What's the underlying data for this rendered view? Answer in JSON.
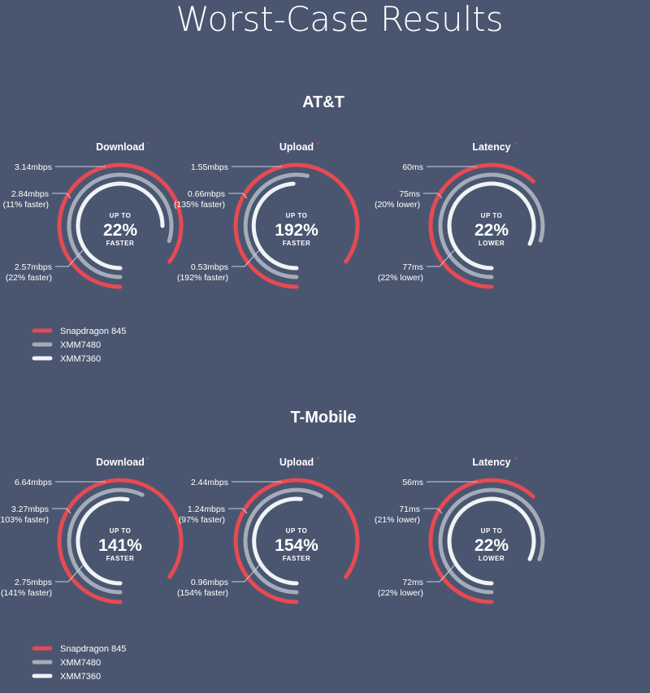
{
  "page": {
    "title": "Worst-Case Results",
    "carriers": [
      {
        "name": "AT&T"
      },
      {
        "name": "T-Mobile"
      }
    ]
  },
  "colors": {
    "background": "#4a5670",
    "snapdragon_845": "#e64a52",
    "xmm7480": "#a4acb8",
    "xmm7360": "#f1f2f4",
    "leader_line": "#c9ced8",
    "asterisk": "#e64a52"
  },
  "legend": [
    {
      "name": "Snapdragon 845",
      "color_key": "snapdragon_845"
    },
    {
      "name": "XMM7480",
      "color_key": "xmm7480"
    },
    {
      "name": "XMM7360",
      "color_key": "xmm7360"
    }
  ],
  "chart_data": [
    {
      "type": "radial-bar",
      "carrier": "AT&T",
      "title": "Download",
      "title_marker": "*",
      "center": {
        "line1": "UP TO",
        "value": "22%",
        "line3": "FASTER"
      },
      "series": [
        {
          "name": "Snapdragon 845",
          "value": 3.14,
          "unit": "mbps",
          "label": "3.14mbps",
          "sublabel": ""
        },
        {
          "name": "XMM7480",
          "value": 2.84,
          "unit": "mbps",
          "label": "2.84mbps",
          "sublabel": "(11% faster)"
        },
        {
          "name": "XMM7360",
          "value": 2.57,
          "unit": "mbps",
          "label": "2.57mbps",
          "sublabel": "(22% faster)"
        }
      ]
    },
    {
      "type": "radial-bar",
      "carrier": "AT&T",
      "title": "Upload",
      "title_marker": "*",
      "center": {
        "line1": "UP TO",
        "value": "192%",
        "line3": "FASTER"
      },
      "series": [
        {
          "name": "Snapdragon 845",
          "value": 1.55,
          "unit": "mbps",
          "label": "1.55mbps",
          "sublabel": ""
        },
        {
          "name": "XMM7480",
          "value": 0.66,
          "unit": "mbps",
          "label": "0.66mbps",
          "sublabel": "(135% faster)"
        },
        {
          "name": "XMM7360",
          "value": 0.53,
          "unit": "mbps",
          "label": "0.53mbps",
          "sublabel": "(192% faster)"
        }
      ]
    },
    {
      "type": "radial-bar",
      "carrier": "AT&T",
      "title": "Latency",
      "title_marker": "*",
      "center": {
        "line1": "UP TO",
        "value": "22%",
        "line3": "LOWER"
      },
      "series": [
        {
          "name": "Snapdragon 845",
          "value": 60,
          "unit": "ms",
          "label": "60ms",
          "sublabel": ""
        },
        {
          "name": "XMM7480",
          "value": 75,
          "unit": "ms",
          "label": "75ms",
          "sublabel": "(20% lower)"
        },
        {
          "name": "XMM7360",
          "value": 77,
          "unit": "ms",
          "label": "77ms",
          "sublabel": "(22% lower)"
        }
      ]
    },
    {
      "type": "radial-bar",
      "carrier": "T-Mobile",
      "title": "Download",
      "title_marker": "*",
      "center": {
        "line1": "UP TO",
        "value": "141%",
        "line3": "FASTER"
      },
      "series": [
        {
          "name": "Snapdragon 845",
          "value": 6.64,
          "unit": "mbps",
          "label": "6.64mbps",
          "sublabel": ""
        },
        {
          "name": "XMM7480",
          "value": 3.27,
          "unit": "mbps",
          "label": "3.27mbps",
          "sublabel": "(103% faster)"
        },
        {
          "name": "XMM7360",
          "value": 2.75,
          "unit": "mbps",
          "label": "2.75mbps",
          "sublabel": "(141% faster)"
        }
      ]
    },
    {
      "type": "radial-bar",
      "carrier": "T-Mobile",
      "title": "Upload",
      "title_marker": "*",
      "center": {
        "line1": "UP TO",
        "value": "154%",
        "line3": "FASTER"
      },
      "series": [
        {
          "name": "Snapdragon 845",
          "value": 2.44,
          "unit": "mbps",
          "label": "2.44mbps",
          "sublabel": ""
        },
        {
          "name": "XMM7480",
          "value": 1.24,
          "unit": "mbps",
          "label": "1.24mbps",
          "sublabel": "(97% faster)"
        },
        {
          "name": "XMM7360",
          "value": 0.96,
          "unit": "mbps",
          "label": "0.96mbps",
          "sublabel": "(154% faster)"
        }
      ]
    },
    {
      "type": "radial-bar",
      "carrier": "T-Mobile",
      "title": "Latency",
      "title_marker": "*",
      "center": {
        "line1": "UP TO",
        "value": "22%",
        "line3": "LOWER"
      },
      "series": [
        {
          "name": "Snapdragon 845",
          "value": 56,
          "unit": "ms",
          "label": "56ms",
          "sublabel": ""
        },
        {
          "name": "XMM7480",
          "value": 71,
          "unit": "ms",
          "label": "71ms",
          "sublabel": "(21% lower)"
        },
        {
          "name": "XMM7360",
          "value": 72,
          "unit": "ms",
          "label": "72ms",
          "sublabel": "(22% lower)"
        }
      ]
    }
  ]
}
